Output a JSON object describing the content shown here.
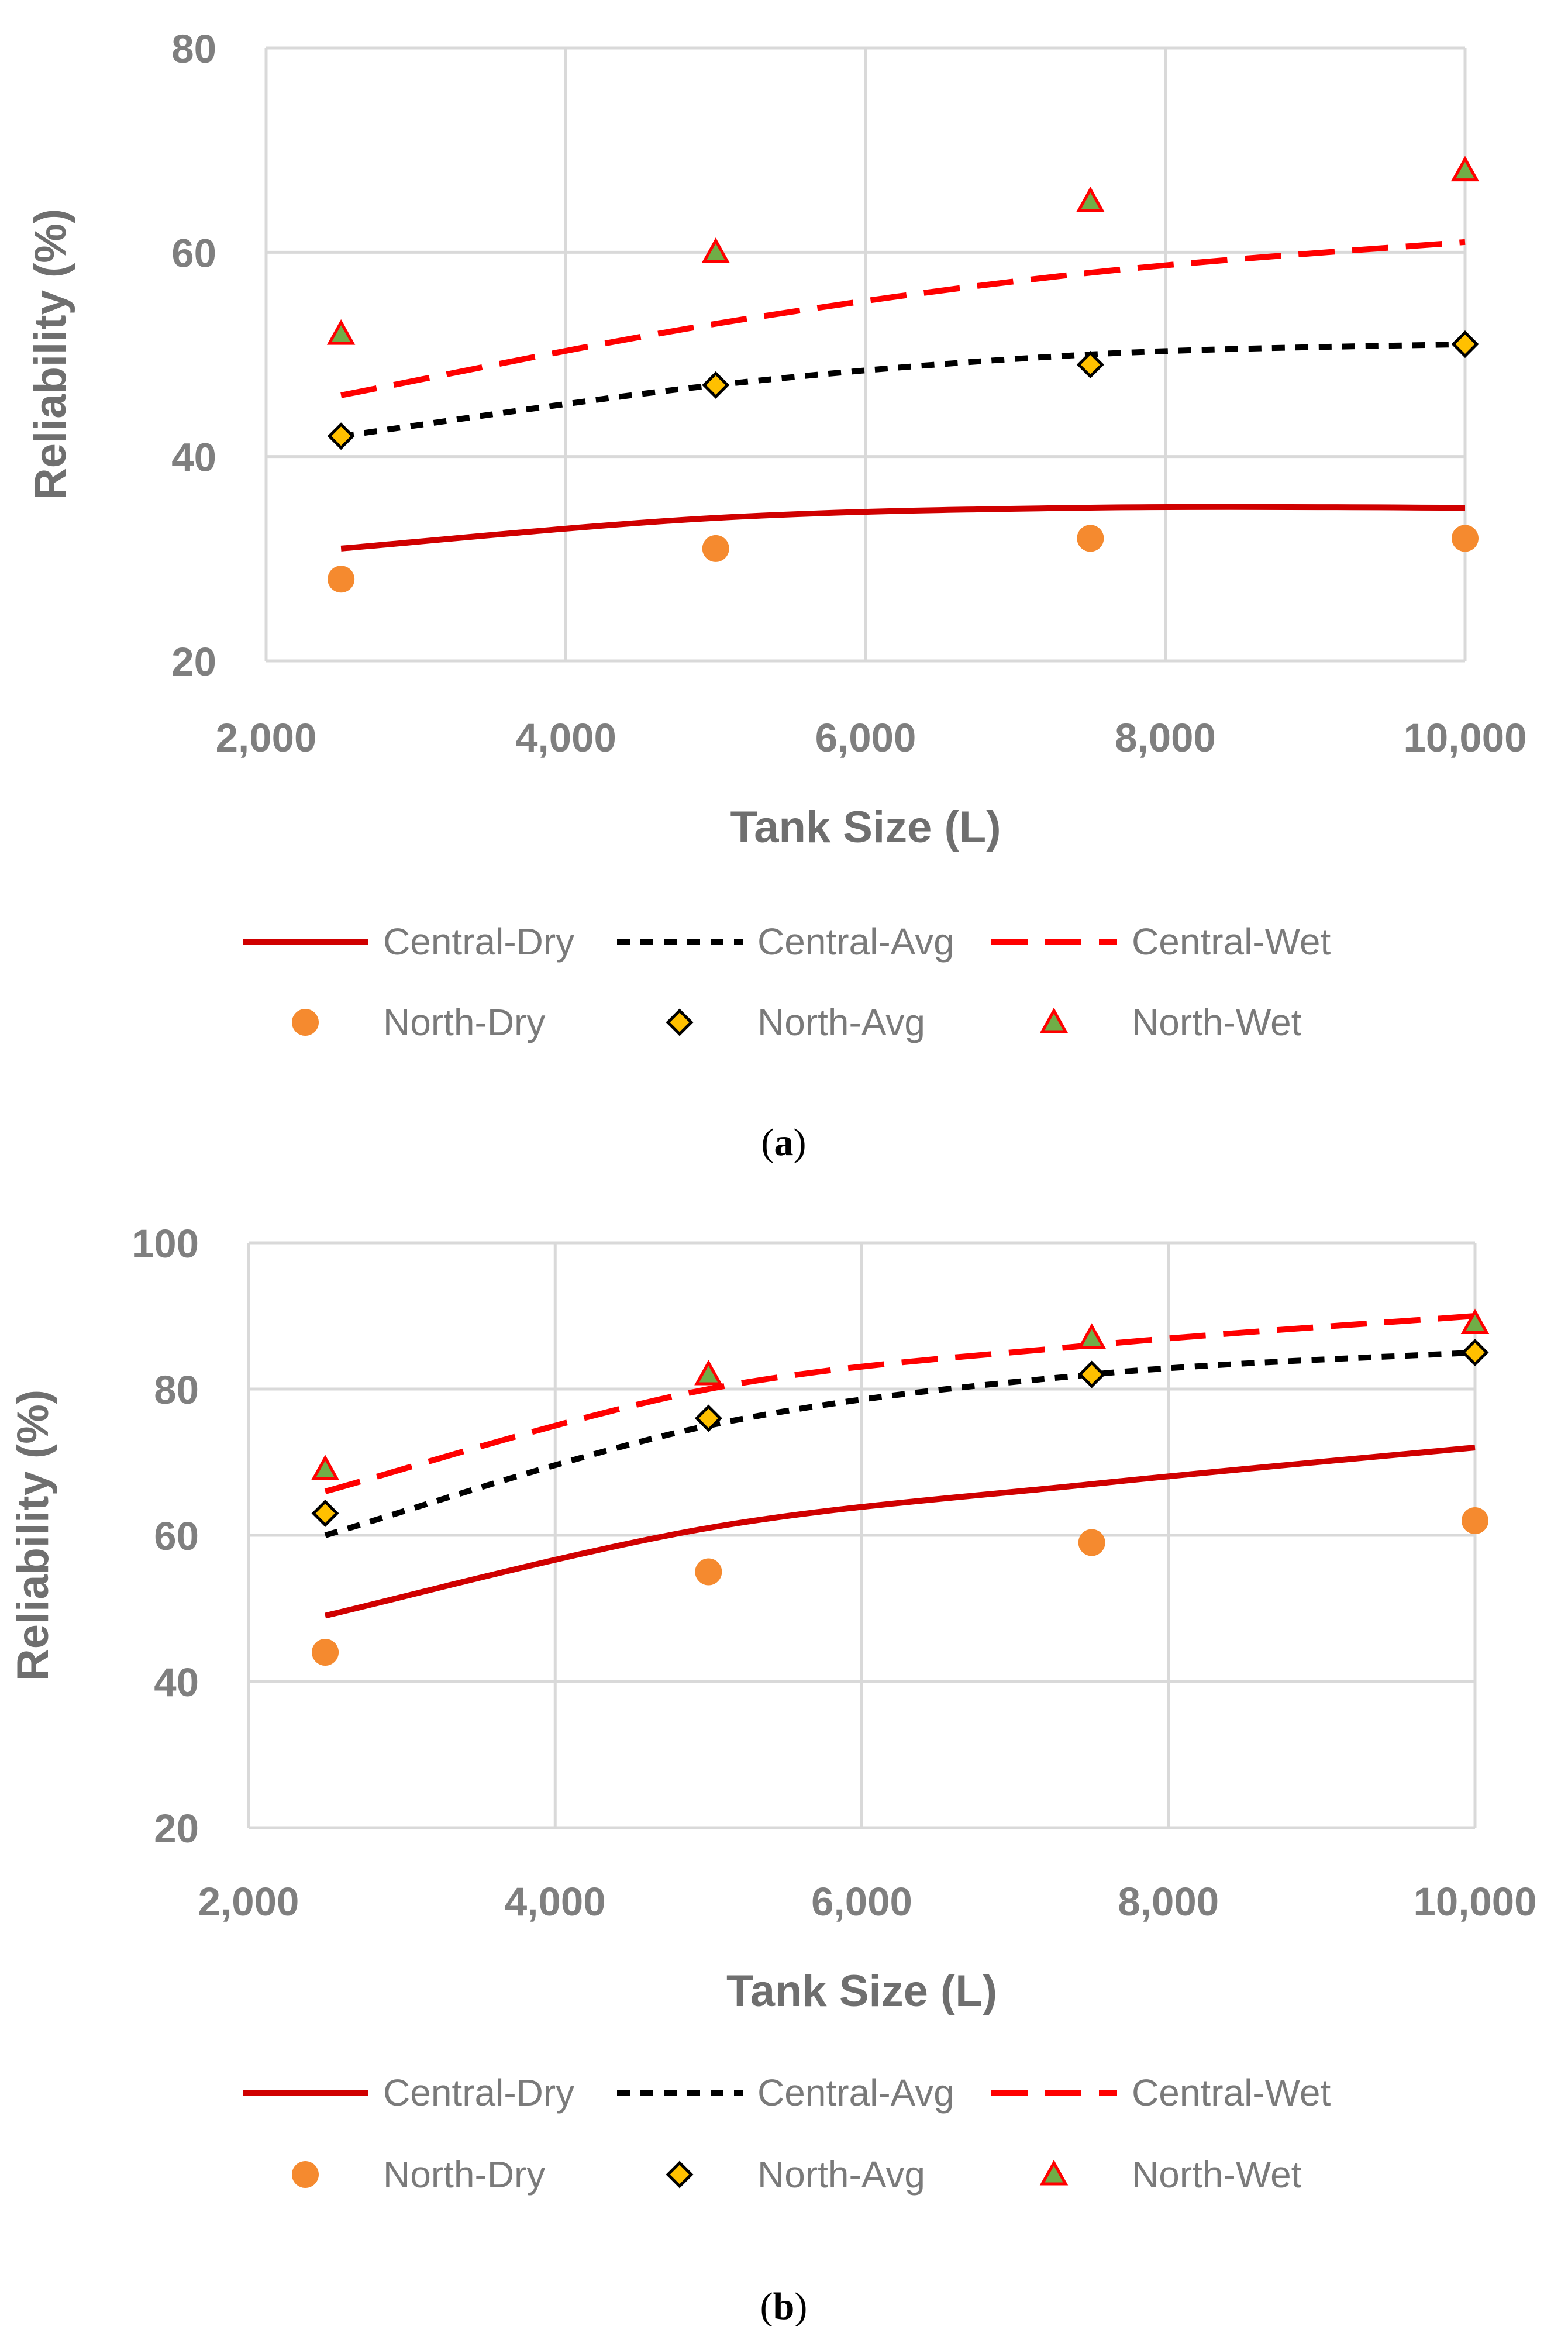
{
  "chart_data": [
    {
      "panel": "a",
      "caption": {
        "open": "(",
        "letter": "a",
        "close": ")"
      },
      "type": "line",
      "xlabel": "Tank Size (L)",
      "ylabel": "Reliability (%)",
      "xlim": [
        2000,
        10000
      ],
      "ylim": [
        20,
        80
      ],
      "xticks": [
        2000,
        4000,
        6000,
        8000,
        10000
      ],
      "xtick_labels": [
        "2,000",
        "4,000",
        "6,000",
        "8,000",
        "10,000"
      ],
      "yticks": [
        20,
        40,
        60,
        80
      ],
      "ytick_labels": [
        "20",
        "40",
        "60",
        "80"
      ],
      "grid": true,
      "legend_position": "bottom",
      "series": [
        {
          "name": "Central-Dry",
          "kind": "line",
          "style": "solid",
          "color": "#d00000",
          "x": [
            2500,
            5000,
            7500,
            10000
          ],
          "values": [
            31,
            34,
            35,
            35
          ]
        },
        {
          "name": "Central-Avg",
          "kind": "line",
          "style": "dashed",
          "color": "#000000",
          "x": [
            2500,
            5000,
            7500,
            10000
          ],
          "values": [
            42,
            47,
            50,
            51
          ]
        },
        {
          "name": "Central-Wet",
          "kind": "line",
          "style": "longdash",
          "color": "#ff0000",
          "x": [
            2500,
            5000,
            7500,
            10000
          ],
          "values": [
            46,
            53,
            58,
            61
          ]
        },
        {
          "name": "North-Dry",
          "kind": "marker",
          "marker": "circle",
          "color": "#f58a2f",
          "x": [
            2500,
            5000,
            7500,
            10000
          ],
          "values": [
            28,
            31,
            32,
            32
          ]
        },
        {
          "name": "North-Avg",
          "kind": "marker",
          "marker": "diamond",
          "color": "#ffc000",
          "edge": "#000000",
          "x": [
            2500,
            5000,
            7500,
            10000
          ],
          "values": [
            42,
            47,
            49,
            51
          ]
        },
        {
          "name": "North-Wet",
          "kind": "marker",
          "marker": "triangle",
          "color": "#70ad47",
          "edge": "#ff0000",
          "x": [
            2500,
            5000,
            7500,
            10000
          ],
          "values": [
            52,
            60,
            65,
            68
          ]
        }
      ]
    },
    {
      "panel": "b",
      "caption": {
        "open": "(",
        "letter": "b",
        "close": ")"
      },
      "type": "line",
      "xlabel": "Tank Size (L)",
      "ylabel": "Reliability (%)",
      "xlim": [
        2000,
        10000
      ],
      "ylim": [
        20,
        100
      ],
      "xticks": [
        2000,
        4000,
        6000,
        8000,
        10000
      ],
      "xtick_labels": [
        "2,000",
        "4,000",
        "6,000",
        "8,000",
        "10,000"
      ],
      "yticks": [
        20,
        40,
        60,
        80,
        100
      ],
      "ytick_labels": [
        "20",
        "40",
        "60",
        "80",
        "100"
      ],
      "grid": true,
      "legend_position": "bottom",
      "series": [
        {
          "name": "Central-Dry",
          "kind": "line",
          "style": "solid",
          "color": "#d00000",
          "x": [
            2500,
            5000,
            7500,
            10000
          ],
          "values": [
            49,
            61,
            67,
            72
          ]
        },
        {
          "name": "Central-Avg",
          "kind": "line",
          "style": "dashed",
          "color": "#000000",
          "x": [
            2500,
            5000,
            7500,
            10000
          ],
          "values": [
            60,
            75,
            82,
            85
          ]
        },
        {
          "name": "Central-Wet",
          "kind": "line",
          "style": "longdash",
          "color": "#ff0000",
          "x": [
            2500,
            5000,
            7500,
            10000
          ],
          "values": [
            66,
            80,
            86,
            90
          ]
        },
        {
          "name": "North-Dry",
          "kind": "marker",
          "marker": "circle",
          "color": "#f58a2f",
          "x": [
            2500,
            5000,
            7500,
            10000
          ],
          "values": [
            44,
            55,
            59,
            62
          ]
        },
        {
          "name": "North-Avg",
          "kind": "marker",
          "marker": "diamond",
          "color": "#ffc000",
          "edge": "#000000",
          "x": [
            2500,
            5000,
            7500,
            10000
          ],
          "values": [
            63,
            76,
            82,
            85
          ]
        },
        {
          "name": "North-Wet",
          "kind": "marker",
          "marker": "triangle",
          "color": "#70ad47",
          "edge": "#ff0000",
          "x": [
            2500,
            5000,
            7500,
            10000
          ],
          "values": [
            69,
            82,
            87,
            89
          ]
        }
      ]
    }
  ]
}
